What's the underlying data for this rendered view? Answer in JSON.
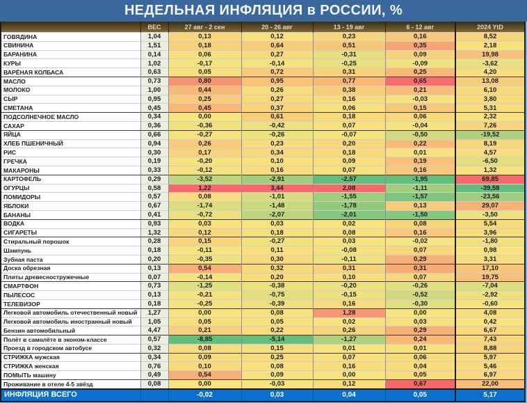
{
  "title": "НЕДЕЛЬНАЯ ИНФЛЯЦИЯ в РОССИИ, %",
  "colors": {
    "title_bar": "#3A689D",
    "title_text": "#F2F6FA",
    "header_gradient_top": "#3A2D16",
    "header_gradient_bottom": "#7E6838",
    "header_text": "#E2D8BA",
    "weight_column_bg": "#EAEEE3",
    "scale_green": "#63BE7B",
    "scale_yellow": "#F8E47E",
    "scale_red": "#F8696B",
    "total_row_bg": "#0B70CD",
    "page_strip": "#82B1D8"
  },
  "chart_data": {
    "type": "table",
    "title": "НЕДЕЛЬНАЯ ИНФЛЯЦИЯ в РОССИИ, %",
    "legend_note": "heatmap: green = deflation, yellow = near zero, red = high inflation; color scaled per column",
    "columns": [
      "ВЕС",
      "27 авг - 2 сен",
      "20 - 26 авг",
      "13 - 19 авг",
      "6 - 12 авг",
      "2024 YtD"
    ],
    "rows": [
      {
        "label": "ГОВЯДИНА",
        "weight": "1,04",
        "values": [
          "0,13",
          "0,12",
          "0,23",
          "0,16"
        ],
        "ytd": "8,52",
        "group": false
      },
      {
        "label": "СВИНИНА",
        "weight": "1,51",
        "values": [
          "0,18",
          "0,64",
          "0,51",
          "0,35"
        ],
        "ytd": "2,18",
        "group": false
      },
      {
        "label": "БАРАНИНА",
        "weight": "0,14",
        "values": [
          "0,06",
          "0,27",
          "-0,31",
          "0,09"
        ],
        "ytd": "19,98",
        "group": false
      },
      {
        "label": "КУРЫ",
        "weight": "1,02",
        "values": [
          "-0,17",
          "-0,14",
          "-0,25",
          "-0,09"
        ],
        "ytd": "-3,62",
        "group": false
      },
      {
        "label": "ВАРЁНАЯ КОЛБАСА",
        "weight": "0,63",
        "values": [
          "0,05",
          "0,72",
          "0,31",
          "0,25"
        ],
        "ytd": "4,20",
        "group": false
      },
      {
        "label": "МАСЛО",
        "weight": "0,73",
        "values": [
          "0,80",
          "0,95",
          "0,77",
          "0,65"
        ],
        "ytd": "13,08",
        "group": true
      },
      {
        "label": "МОЛОКО",
        "weight": "1,00",
        "values": [
          "0,44",
          "0,26",
          "0,38",
          "0,21"
        ],
        "ytd": "6,10",
        "group": false
      },
      {
        "label": "СЫР",
        "weight": "0,95",
        "values": [
          "0,25",
          "0,27",
          "0,16",
          "-0,03"
        ],
        "ytd": "3,80",
        "group": false
      },
      {
        "label": "СМЕТАНА",
        "weight": "0,45",
        "values": [
          "0,45",
          "0,37",
          "0,06",
          "0,15"
        ],
        "ytd": "5,31",
        "group": false
      },
      {
        "label": "ПОДСОЛНЕЧНОЕ МАСЛО",
        "weight": "0,34",
        "values": [
          "0,00",
          "0,61",
          "0,18",
          "0,06"
        ],
        "ytd": "2,32",
        "group": true
      },
      {
        "label": "САХАР",
        "weight": "0,36",
        "values": [
          "-0,36",
          "-0,42",
          "0,07",
          "-0,04"
        ],
        "ytd": "7,26",
        "group": false
      },
      {
        "label": "ЯЙЦА",
        "weight": "0,66",
        "values": [
          "-0,27",
          "-0,26",
          "-0,07",
          "-0,50"
        ],
        "ytd": "-19,52",
        "group": true
      },
      {
        "label": "ХЛЕБ ПШЕНИЧНЫЙ",
        "weight": "0,94",
        "values": [
          "0,26",
          "0,23",
          "0,20",
          "0,22"
        ],
        "ytd": "8,19",
        "group": false
      },
      {
        "label": "РИС",
        "weight": "0,30",
        "values": [
          "0,17",
          "0,34",
          "0,18",
          "0,01"
        ],
        "ytd": "4,57",
        "group": false
      },
      {
        "label": "ГРЕЧКА",
        "weight": "0,19",
        "values": [
          "-0,20",
          "0,10",
          "0,09",
          "0,19"
        ],
        "ytd": "-6,50",
        "group": false
      },
      {
        "label": "МАКАРОНЫ",
        "weight": "0,33",
        "values": [
          "-0,12",
          "0,16",
          "0,07",
          "0,16"
        ],
        "ytd": "1,32",
        "group": false
      },
      {
        "label": "КАРТОФЕЛЬ",
        "weight": "0,29",
        "values": [
          "-3,52",
          "-2,91",
          "-2,57",
          "-1,95"
        ],
        "ytd": "69,85",
        "group": true
      },
      {
        "label": "ОГУРЦЫ",
        "weight": "0,58",
        "values": [
          "1,22",
          "3,44",
          "2,08",
          "-1,11"
        ],
        "ytd": "-39,58",
        "group": false
      },
      {
        "label": "ПОМИДОРЫ",
        "weight": "0,57",
        "values": [
          "0,08",
          "-1,01",
          "-1,55",
          "-1,57"
        ],
        "ytd": "-23,56",
        "group": false
      },
      {
        "label": "ЯБЛОКИ",
        "weight": "0,67",
        "values": [
          "-1,74",
          "-1,48",
          "-1,78",
          "0,13"
        ],
        "ytd": "29,07",
        "group": false
      },
      {
        "label": "БАНАНЫ",
        "weight": "0,41",
        "values": [
          "-0,72",
          "-2,07",
          "-2,01",
          "-1,50"
        ],
        "ytd": "-3,50",
        "group": false
      },
      {
        "label": "ВОДКА",
        "weight": "0,93",
        "values": [
          "0,03",
          "0,03",
          "0,02",
          "0,08"
        ],
        "ytd": "5,54",
        "group": true
      },
      {
        "label": "СИГАРЕТЫ",
        "weight": "1,32",
        "values": [
          "0,12",
          "0,18",
          "0,08",
          "0,16"
        ],
        "ytd": "3,96",
        "group": false
      },
      {
        "label": "Стиральный порошок",
        "weight": "0,28",
        "values": [
          "0,15",
          "-0,27",
          "0,03",
          "-0,02"
        ],
        "ytd": "-1,80",
        "group": true
      },
      {
        "label": "Шампунь",
        "weight": "0,18",
        "values": [
          "-0,11",
          "0,11",
          "-0,08",
          "0,07"
        ],
        "ytd": "0,98",
        "group": false
      },
      {
        "label": "Зубная паста",
        "weight": "0,20",
        "values": [
          "-0,35",
          "0,30",
          "-0,11",
          "0,29"
        ],
        "ytd": "3,31",
        "group": false
      },
      {
        "label": "Доска обрезная",
        "weight": "0,13",
        "values": [
          "0,54",
          "0,32",
          "0,31",
          "0,31"
        ],
        "ytd": "17,10",
        "group": true
      },
      {
        "label": "Плиты древесностружечные",
        "weight": "0,07",
        "values": [
          "-0,14",
          "0,20",
          "0,10",
          "0,07"
        ],
        "ytd": "19,75",
        "group": false
      },
      {
        "label": "СМАРТФОН",
        "weight": "0,73",
        "values": [
          "-1,25",
          "-0,38",
          "-0,20",
          "-0,26"
        ],
        "ytd": "-7,04",
        "group": true
      },
      {
        "label": "ПЫЛЕСОС",
        "weight": "0,13",
        "values": [
          "-0,21",
          "-0,75",
          "-0,15",
          "-0,52"
        ],
        "ytd": "-2,92",
        "group": false
      },
      {
        "label": "ТЕЛЕВИЗОР",
        "weight": "0,18",
        "values": [
          "-0,25",
          "-0,39",
          "0,16",
          "-0,30"
        ],
        "ytd": "-0,60",
        "group": false
      },
      {
        "label": "Легковой автомобиль отечественный новый",
        "weight": "1,27",
        "values": [
          "0,00",
          "0,08",
          "1,28",
          "0,00"
        ],
        "ytd": "4,08",
        "group": true
      },
      {
        "label": "Легковой автомобиль иностранный новый",
        "weight": "1,05",
        "values": [
          "0,05",
          "0,05",
          "0,02",
          "0,03"
        ],
        "ytd": "0,42",
        "group": false
      },
      {
        "label": "Бензин автомобильный",
        "weight": "4,47",
        "values": [
          "0,21",
          "0,22",
          "0,26",
          "0,29"
        ],
        "ytd": "6,67",
        "group": false
      },
      {
        "label": "Полёт в самолёте в эконом-классе",
        "weight": "0,57",
        "values": [
          "-8,85",
          "-5,14",
          "-1,27",
          "0,24"
        ],
        "ytd": "7,43",
        "group": true
      },
      {
        "label": "Проезд в городском автобусе",
        "weight": "0,32",
        "values": [
          "0,08",
          "0,15",
          "0,01",
          "0,01"
        ],
        "ytd": "8,88",
        "group": false
      },
      {
        "label": "СТРИЖКА мужская",
        "weight": "0,34",
        "values": [
          "0,09",
          "0,25",
          "0,07",
          "0,06"
        ],
        "ytd": "5,97",
        "group": true
      },
      {
        "label": "СТРИЖКА женская",
        "weight": "0,76",
        "values": [
          "0,10",
          "0,08",
          "0,16",
          "0,04"
        ],
        "ytd": "5,46",
        "group": false
      },
      {
        "label": "ПОМЫТЬ машину",
        "weight": "0,49",
        "values": [
          "0,54",
          "0,09",
          "0,00",
          "0,05"
        ],
        "ytd": "6,97",
        "group": false
      },
      {
        "label": "Проживание в отеле 4-5 звёзд",
        "weight": "0,08",
        "values": [
          "0,00",
          "-0,03",
          "0,12",
          "0,67"
        ],
        "ytd": "22,00",
        "group": true
      }
    ],
    "total_row": {
      "label": "ИНФЛЯЦИЯ ВСЕГО",
      "weight": "",
      "values": [
        "-0,02",
        "0,03",
        "0,04",
        "0,05"
      ],
      "ytd": "5,17"
    }
  }
}
